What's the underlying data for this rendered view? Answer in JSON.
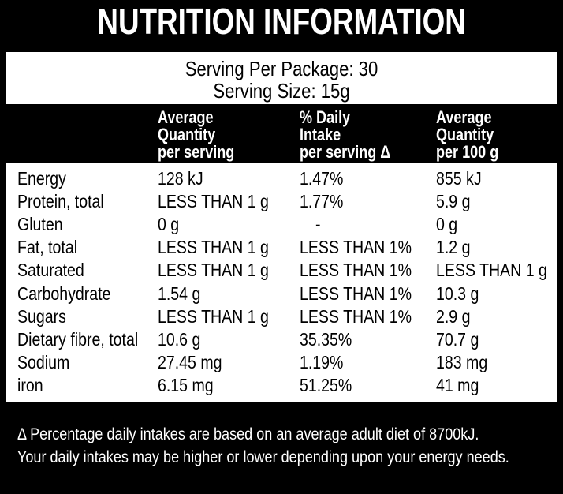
{
  "title": "NUTRITION INFORMATION",
  "serving": [
    "Serving Per Package: 30",
    "Serving Size: 15g"
  ],
  "table": {
    "header": [
      [
        "Average",
        "Quantity",
        "per serving"
      ],
      [
        "% Daily",
        "Intake",
        "per serving Δ"
      ],
      [
        "Average",
        "Quantity",
        "per 100 g"
      ]
    ],
    "rows": [
      [
        "Energy",
        "128 kJ",
        "1.47%",
        "855 kJ"
      ],
      [
        "Protein, total",
        "LESS THAN 1 g",
        "1.77%",
        "5.9 g"
      ],
      [
        "Gluten",
        "0 g",
        "-",
        "0 g"
      ],
      [
        "Fat, total",
        "LESS THAN 1 g",
        "LESS THAN 1%",
        "1.2 g"
      ],
      [
        "Saturated",
        "LESS THAN 1 g",
        "LESS THAN 1%",
        "LESS THAN 1 g"
      ],
      [
        "Carbohydrate",
        "1.54 g",
        "LESS THAN 1%",
        "10.3 g"
      ],
      [
        "Sugars",
        "LESS THAN 1 g",
        "LESS THAN 1%",
        "2.9 g"
      ],
      [
        "Dietary fibre, total",
        "10.6 g",
        "35.35%",
        "70.7 g"
      ],
      [
        "Sodium",
        "27.45 mg",
        "1.19%",
        "183 mg"
      ],
      [
        "iron",
        "6.15 mg",
        "51.25%",
        "41 mg"
      ]
    ]
  },
  "footnote": [
    "Δ Percentage daily intakes are based on an average adult diet of 8700kJ.",
    "Your daily intakes may be higher or lower depending upon your energy needs."
  ]
}
